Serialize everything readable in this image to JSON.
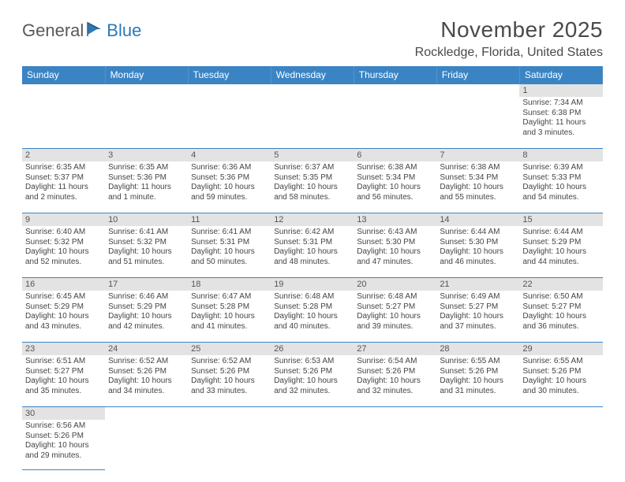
{
  "logo": {
    "text_general": "General",
    "text_blue": "Blue"
  },
  "title": "November 2025",
  "location": "Rockledge, Florida, United States",
  "colors": {
    "header_bg": "#3b84c4",
    "header_fg": "#ffffff",
    "daynum_bg": "#e3e3e3",
    "border": "#3b84c4",
    "logo_gray": "#555a5e",
    "logo_blue": "#2a7ab8",
    "title_color": "#4a4a4a"
  },
  "calendar": {
    "type": "table",
    "day_headers": [
      "Sunday",
      "Monday",
      "Tuesday",
      "Wednesday",
      "Thursday",
      "Friday",
      "Saturday"
    ],
    "weeks": [
      [
        null,
        null,
        null,
        null,
        null,
        null,
        {
          "n": "1",
          "sr": "Sunrise: 7:34 AM",
          "ss": "Sunset: 6:38 PM",
          "dl1": "Daylight: 11 hours",
          "dl2": "and 3 minutes."
        }
      ],
      [
        {
          "n": "2",
          "sr": "Sunrise: 6:35 AM",
          "ss": "Sunset: 5:37 PM",
          "dl1": "Daylight: 11 hours",
          "dl2": "and 2 minutes."
        },
        {
          "n": "3",
          "sr": "Sunrise: 6:35 AM",
          "ss": "Sunset: 5:36 PM",
          "dl1": "Daylight: 11 hours",
          "dl2": "and 1 minute."
        },
        {
          "n": "4",
          "sr": "Sunrise: 6:36 AM",
          "ss": "Sunset: 5:36 PM",
          "dl1": "Daylight: 10 hours",
          "dl2": "and 59 minutes."
        },
        {
          "n": "5",
          "sr": "Sunrise: 6:37 AM",
          "ss": "Sunset: 5:35 PM",
          "dl1": "Daylight: 10 hours",
          "dl2": "and 58 minutes."
        },
        {
          "n": "6",
          "sr": "Sunrise: 6:38 AM",
          "ss": "Sunset: 5:34 PM",
          "dl1": "Daylight: 10 hours",
          "dl2": "and 56 minutes."
        },
        {
          "n": "7",
          "sr": "Sunrise: 6:38 AM",
          "ss": "Sunset: 5:34 PM",
          "dl1": "Daylight: 10 hours",
          "dl2": "and 55 minutes."
        },
        {
          "n": "8",
          "sr": "Sunrise: 6:39 AM",
          "ss": "Sunset: 5:33 PM",
          "dl1": "Daylight: 10 hours",
          "dl2": "and 54 minutes."
        }
      ],
      [
        {
          "n": "9",
          "sr": "Sunrise: 6:40 AM",
          "ss": "Sunset: 5:32 PM",
          "dl1": "Daylight: 10 hours",
          "dl2": "and 52 minutes."
        },
        {
          "n": "10",
          "sr": "Sunrise: 6:41 AM",
          "ss": "Sunset: 5:32 PM",
          "dl1": "Daylight: 10 hours",
          "dl2": "and 51 minutes."
        },
        {
          "n": "11",
          "sr": "Sunrise: 6:41 AM",
          "ss": "Sunset: 5:31 PM",
          "dl1": "Daylight: 10 hours",
          "dl2": "and 50 minutes."
        },
        {
          "n": "12",
          "sr": "Sunrise: 6:42 AM",
          "ss": "Sunset: 5:31 PM",
          "dl1": "Daylight: 10 hours",
          "dl2": "and 48 minutes."
        },
        {
          "n": "13",
          "sr": "Sunrise: 6:43 AM",
          "ss": "Sunset: 5:30 PM",
          "dl1": "Daylight: 10 hours",
          "dl2": "and 47 minutes."
        },
        {
          "n": "14",
          "sr": "Sunrise: 6:44 AM",
          "ss": "Sunset: 5:30 PM",
          "dl1": "Daylight: 10 hours",
          "dl2": "and 46 minutes."
        },
        {
          "n": "15",
          "sr": "Sunrise: 6:44 AM",
          "ss": "Sunset: 5:29 PM",
          "dl1": "Daylight: 10 hours",
          "dl2": "and 44 minutes."
        }
      ],
      [
        {
          "n": "16",
          "sr": "Sunrise: 6:45 AM",
          "ss": "Sunset: 5:29 PM",
          "dl1": "Daylight: 10 hours",
          "dl2": "and 43 minutes."
        },
        {
          "n": "17",
          "sr": "Sunrise: 6:46 AM",
          "ss": "Sunset: 5:29 PM",
          "dl1": "Daylight: 10 hours",
          "dl2": "and 42 minutes."
        },
        {
          "n": "18",
          "sr": "Sunrise: 6:47 AM",
          "ss": "Sunset: 5:28 PM",
          "dl1": "Daylight: 10 hours",
          "dl2": "and 41 minutes."
        },
        {
          "n": "19",
          "sr": "Sunrise: 6:48 AM",
          "ss": "Sunset: 5:28 PM",
          "dl1": "Daylight: 10 hours",
          "dl2": "and 40 minutes."
        },
        {
          "n": "20",
          "sr": "Sunrise: 6:48 AM",
          "ss": "Sunset: 5:27 PM",
          "dl1": "Daylight: 10 hours",
          "dl2": "and 39 minutes."
        },
        {
          "n": "21",
          "sr": "Sunrise: 6:49 AM",
          "ss": "Sunset: 5:27 PM",
          "dl1": "Daylight: 10 hours",
          "dl2": "and 37 minutes."
        },
        {
          "n": "22",
          "sr": "Sunrise: 6:50 AM",
          "ss": "Sunset: 5:27 PM",
          "dl1": "Daylight: 10 hours",
          "dl2": "and 36 minutes."
        }
      ],
      [
        {
          "n": "23",
          "sr": "Sunrise: 6:51 AM",
          "ss": "Sunset: 5:27 PM",
          "dl1": "Daylight: 10 hours",
          "dl2": "and 35 minutes."
        },
        {
          "n": "24",
          "sr": "Sunrise: 6:52 AM",
          "ss": "Sunset: 5:26 PM",
          "dl1": "Daylight: 10 hours",
          "dl2": "and 34 minutes."
        },
        {
          "n": "25",
          "sr": "Sunrise: 6:52 AM",
          "ss": "Sunset: 5:26 PM",
          "dl1": "Daylight: 10 hours",
          "dl2": "and 33 minutes."
        },
        {
          "n": "26",
          "sr": "Sunrise: 6:53 AM",
          "ss": "Sunset: 5:26 PM",
          "dl1": "Daylight: 10 hours",
          "dl2": "and 32 minutes."
        },
        {
          "n": "27",
          "sr": "Sunrise: 6:54 AM",
          "ss": "Sunset: 5:26 PM",
          "dl1": "Daylight: 10 hours",
          "dl2": "and 32 minutes."
        },
        {
          "n": "28",
          "sr": "Sunrise: 6:55 AM",
          "ss": "Sunset: 5:26 PM",
          "dl1": "Daylight: 10 hours",
          "dl2": "and 31 minutes."
        },
        {
          "n": "29",
          "sr": "Sunrise: 6:55 AM",
          "ss": "Sunset: 5:26 PM",
          "dl1": "Daylight: 10 hours",
          "dl2": "and 30 minutes."
        }
      ],
      [
        {
          "n": "30",
          "sr": "Sunrise: 6:56 AM",
          "ss": "Sunset: 5:26 PM",
          "dl1": "Daylight: 10 hours",
          "dl2": "and 29 minutes."
        },
        null,
        null,
        null,
        null,
        null,
        null
      ]
    ]
  }
}
